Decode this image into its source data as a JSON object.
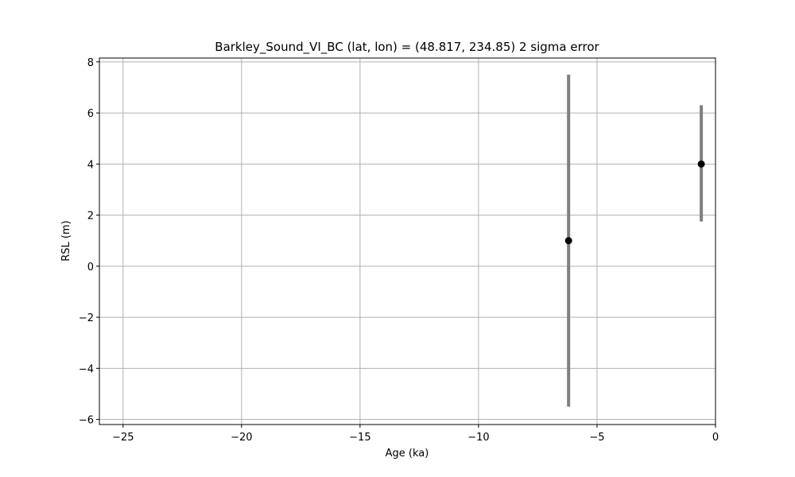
{
  "chart_data": {
    "type": "scatter",
    "title": "Barkley_Sound_VI_BC (lat, lon) = (48.817, 234.85)  2 sigma error",
    "xlabel": "Age (ka)",
    "ylabel": "RSL (m)",
    "xlim": [
      -26,
      0
    ],
    "ylim": [
      -6.2,
      8.15
    ],
    "xticks": [
      -25,
      -20,
      -15,
      -10,
      -5,
      0
    ],
    "yticks": [
      -6,
      -4,
      -2,
      0,
      2,
      4,
      6,
      8
    ],
    "grid": true,
    "legend": "none",
    "points": [
      {
        "x": -6.2,
        "y": 1.0,
        "err_low": -5.5,
        "err_high": 7.5
      },
      {
        "x": -0.6,
        "y": 4.0,
        "err_low": 1.75,
        "err_high": 6.3
      }
    ],
    "colors": {
      "marker": "#000000",
      "errorbar": "#808080",
      "grid": "#b0b0b0",
      "axes": "#000000"
    }
  }
}
